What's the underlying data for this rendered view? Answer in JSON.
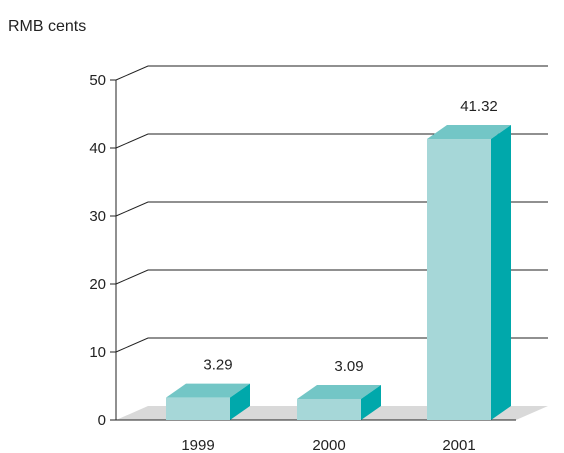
{
  "chart_data": {
    "type": "bar",
    "ylabel": "RMB cents",
    "categories": [
      "1999",
      "2000",
      "2001"
    ],
    "values": [
      3.29,
      3.09,
      41.32
    ],
    "data_labels": [
      "3.29",
      "3.09",
      "41.32"
    ],
    "ylim": [
      0,
      50
    ],
    "yticks": [
      "0",
      "10",
      "20",
      "30",
      "40",
      "50"
    ],
    "grid": true,
    "style": "3d",
    "colors": {
      "bar_front": "#a6d7d8",
      "bar_top": "#73c6c6",
      "bar_side": "#00a8ab",
      "floor": "#d9d9d9",
      "grid": "#222222"
    }
  }
}
